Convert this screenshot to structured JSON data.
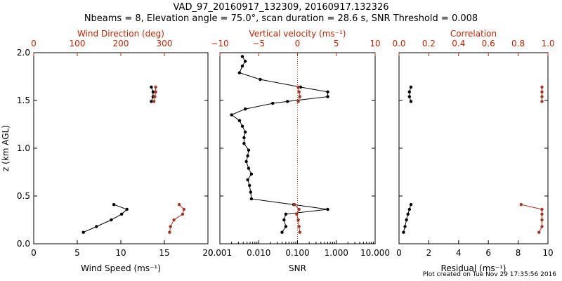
{
  "header": {
    "title": "VAD_97_20160917_132309, 20160917.132326",
    "subtitle": "Nbeams = 8, Elevation angle = 75.0°, scan duration = 28.6 s, SNR Threshold = 0.008"
  },
  "footer": {
    "plot_created": "Plot created on Tue Nov 29 17:35:56 2016"
  },
  "colors": {
    "primary": "#000000",
    "secondary": "#cc2200",
    "secondary_marker": "#aa3322"
  },
  "chart_data": [
    {
      "type": "line",
      "panel": "left",
      "ylabel": "z (km AGL)",
      "ylim": [
        0.0,
        2.0
      ],
      "yticks": [
        "0.0",
        "0.5",
        "1.0",
        "1.5",
        "2.0"
      ],
      "xlabel": "Wind Speed (ms⁻¹)",
      "xlim": [
        0,
        20
      ],
      "xticks": [
        "0",
        "5",
        "10",
        "15",
        "20"
      ],
      "x2label": "Wind Direction (deg)",
      "x2lim": [
        0,
        400
      ],
      "x2ticks": [
        "0",
        "100",
        "200",
        "300"
      ],
      "series": [
        {
          "axis": "bottom",
          "color": "#000000",
          "points": [
            [
              5.7,
              0.12
            ],
            [
              7.2,
              0.18
            ],
            [
              8.9,
              0.25
            ],
            [
              10.1,
              0.31
            ],
            [
              10.7,
              0.36
            ],
            [
              9.2,
              0.41
            ]
          ]
        },
        {
          "axis": "bottom",
          "color": "#000000",
          "points": [
            [
              13.5,
              1.49
            ],
            [
              13.7,
              1.54
            ],
            [
              13.7,
              1.59
            ],
            [
              13.5,
              1.64
            ]
          ]
        },
        {
          "axis": "top",
          "color": "#aa3322",
          "points": [
            [
              312,
              0.12
            ],
            [
              314,
              0.18
            ],
            [
              322,
              0.25
            ],
            [
              342,
              0.31
            ],
            [
              345,
              0.36
            ],
            [
              334,
              0.41
            ]
          ]
        },
        {
          "axis": "top",
          "color": "#aa3322",
          "points": [
            [
              276,
              1.49
            ],
            [
              278,
              1.54
            ],
            [
              280,
              1.59
            ],
            [
              280,
              1.64
            ]
          ]
        }
      ]
    },
    {
      "type": "line",
      "panel": "middle",
      "xlabel": "SNR",
      "xscale": "log",
      "xlim": [
        0.001,
        10.0
      ],
      "xticks": [
        "0.001",
        "0.010",
        "0.100",
        "1.000",
        "10.000"
      ],
      "x2label": "Vertical velocity (ms⁻¹)",
      "x2lim": [
        -10,
        10
      ],
      "x2ticks": [
        "−10",
        "−5",
        "0",
        "5",
        "10"
      ],
      "reference_line_top_value": 0,
      "series": [
        {
          "axis": "bottom",
          "color": "#000000",
          "points": [
            [
              0.04,
              0.12
            ],
            [
              0.05,
              0.18
            ],
            [
              0.045,
              0.25
            ],
            [
              0.05,
              0.31
            ],
            [
              0.6,
              0.36
            ],
            [
              0.08,
              0.41
            ],
            [
              0.0065,
              0.47
            ],
            [
              0.0062,
              0.54
            ],
            [
              0.0058,
              0.61
            ],
            [
              0.0052,
              0.67
            ],
            [
              0.0065,
              0.73
            ],
            [
              0.0055,
              0.79
            ],
            [
              0.0048,
              0.86
            ],
            [
              0.0052,
              0.92
            ],
            [
              0.0055,
              0.98
            ],
            [
              0.0042,
              1.05
            ],
            [
              0.0042,
              1.11
            ],
            [
              0.0045,
              1.17
            ],
            [
              0.0038,
              1.23
            ],
            [
              0.0032,
              1.29
            ],
            [
              0.002,
              1.35
            ],
            [
              0.0045,
              1.41
            ],
            [
              0.023,
              1.47
            ],
            [
              0.055,
              1.49
            ],
            [
              0.6,
              1.54
            ],
            [
              0.6,
              1.59
            ],
            [
              0.12,
              1.64
            ],
            [
              0.011,
              1.72
            ],
            [
              0.0032,
              1.79
            ],
            [
              0.0038,
              1.86
            ],
            [
              0.0045,
              1.91
            ],
            [
              0.0038,
              1.96
            ]
          ]
        },
        {
          "axis": "top",
          "color": "#aa3322",
          "points": [
            [
              0.3,
              0.12
            ],
            [
              0.2,
              0.18
            ],
            [
              0.1,
              0.25
            ],
            [
              -0.1,
              0.31
            ],
            [
              0.2,
              0.36
            ],
            [
              -0.4,
              0.41
            ]
          ]
        },
        {
          "axis": "top",
          "color": "#aa3322",
          "points": [
            [
              0.1,
              1.49
            ],
            [
              0.3,
              1.54
            ],
            [
              0.2,
              1.59
            ],
            [
              0.1,
              1.64
            ]
          ]
        }
      ]
    },
    {
      "type": "line",
      "panel": "right",
      "xlabel": "Residual (ms⁻¹)",
      "xlim": [
        0,
        10
      ],
      "xticks": [
        "0",
        "2",
        "4",
        "6",
        "8",
        "10"
      ],
      "x2label": "Correlation",
      "x2lim": [
        0.0,
        1.0
      ],
      "x2ticks": [
        "0.0",
        "0.2",
        "0.4",
        "0.6",
        "0.8",
        "1.0"
      ],
      "series": [
        {
          "axis": "bottom",
          "color": "#000000",
          "points": [
            [
              0.3,
              0.12
            ],
            [
              0.4,
              0.18
            ],
            [
              0.5,
              0.25
            ],
            [
              0.6,
              0.31
            ],
            [
              0.7,
              0.36
            ],
            [
              0.8,
              0.41
            ]
          ]
        },
        {
          "axis": "bottom",
          "color": "#000000",
          "points": [
            [
              0.8,
              1.49
            ],
            [
              0.7,
              1.54
            ],
            [
              0.7,
              1.59
            ],
            [
              0.8,
              1.64
            ]
          ]
        },
        {
          "axis": "top",
          "color": "#aa3322",
          "points": [
            [
              0.94,
              0.12
            ],
            [
              0.96,
              0.18
            ],
            [
              0.96,
              0.25
            ],
            [
              0.96,
              0.31
            ],
            [
              0.96,
              0.36
            ],
            [
              0.82,
              0.41
            ]
          ]
        },
        {
          "axis": "top",
          "color": "#aa3322",
          "points": [
            [
              0.96,
              1.49
            ],
            [
              0.96,
              1.54
            ],
            [
              0.96,
              1.59
            ],
            [
              0.96,
              1.64
            ]
          ]
        }
      ]
    }
  ]
}
